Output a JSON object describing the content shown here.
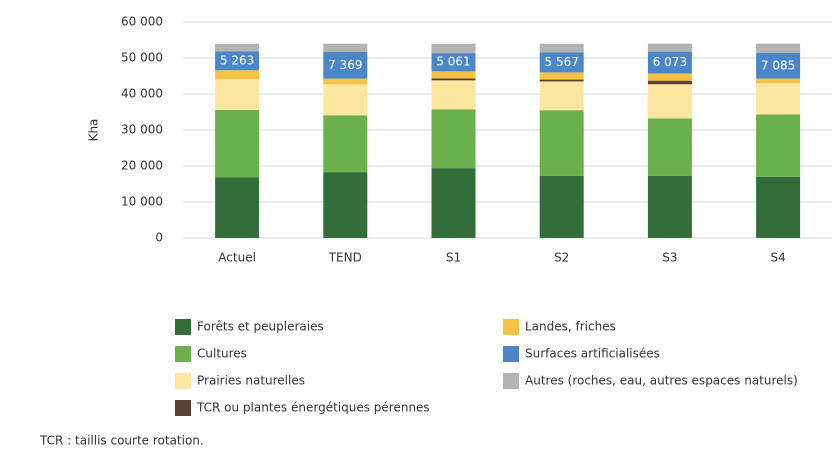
{
  "chart_data": {
    "type": "stacked_bar",
    "y_label": "Kha",
    "categories": [
      "Actuel",
      "TEND",
      "S1",
      "S2",
      "S3",
      "S4"
    ],
    "series": [
      {
        "name": "Forêts et peupleraies",
        "color": "#336e3a",
        "values": [
          16800,
          18300,
          19400,
          17300,
          17300,
          17000
        ]
      },
      {
        "name": "Cultures",
        "color": "#6ab04c",
        "values": [
          18800,
          15800,
          16300,
          18200,
          15900,
          17300
        ]
      },
      {
        "name": "Prairies naturelles",
        "color": "#fde6a0",
        "values": [
          8500,
          8600,
          8100,
          8000,
          9500,
          8700
        ]
      },
      {
        "name": "TCR ou plantes énergétiques pérennes",
        "color": "#5a4030",
        "values": [
          0,
          0,
          500,
          500,
          1000,
          0
        ]
      },
      {
        "name": "Landes, friches",
        "color": "#f6c244",
        "values": [
          2500,
          1600,
          2000,
          2000,
          2000,
          1300
        ]
      },
      {
        "name": "Surfaces artificialisées",
        "color": "#4a86c8",
        "values": [
          5263,
          7369,
          5061,
          5567,
          6073,
          7085
        ],
        "value_labels": [
          "5 263",
          "7 369",
          "5 061",
          "5 567",
          "6 073",
          "7 085"
        ]
      },
      {
        "name": "Autres (roches, eau, autres espaces naturels)",
        "color": "#b3b3b3",
        "values": [
          2100,
          2300,
          2600,
          2400,
          2200,
          2600
        ]
      }
    ],
    "ylim": [
      0,
      60000
    ],
    "yticks": [
      {
        "value": 0,
        "label": "0"
      },
      {
        "value": 10000,
        "label": "10 000"
      },
      {
        "value": 20000,
        "label": "20 000"
      },
      {
        "value": 30000,
        "label": "30 000"
      },
      {
        "value": 40000,
        "label": "40 000"
      },
      {
        "value": 50000,
        "label": "50 000"
      },
      {
        "value": 60000,
        "label": "60 000"
      }
    ],
    "grid": true,
    "note": "TCR : taillis courte rotation."
  }
}
